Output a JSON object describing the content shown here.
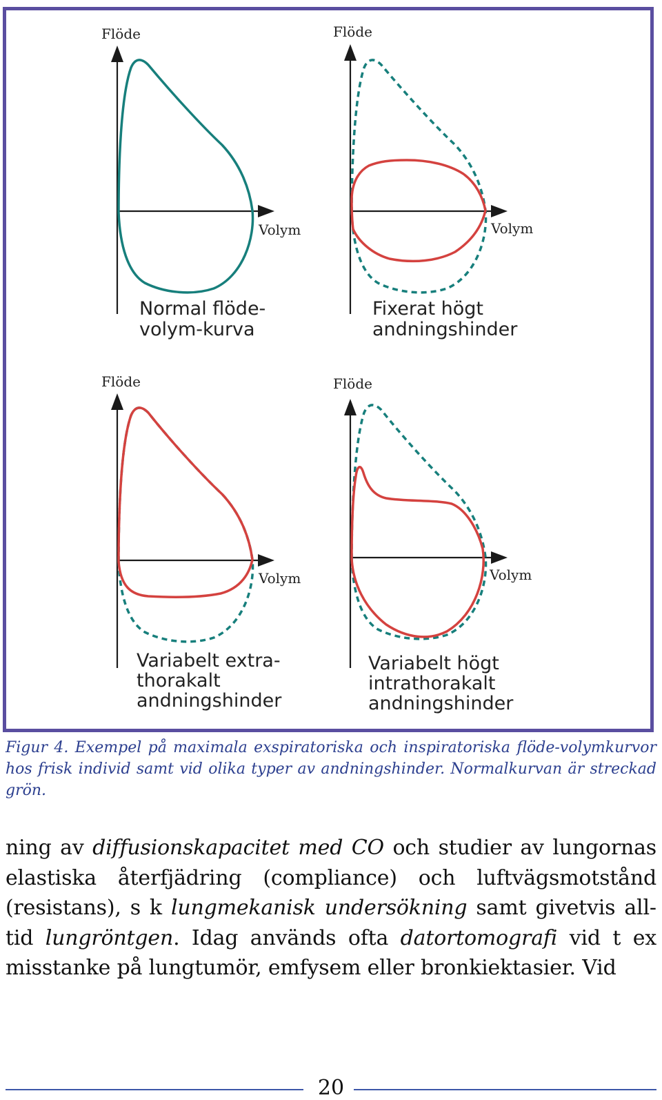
{
  "figure": {
    "panels": [
      {
        "y_label": "Flöde",
        "x_label": "Volym",
        "title_lines": [
          "Normal flöde-",
          "volym-kurva"
        ]
      },
      {
        "y_label": "Flöde",
        "x_label": "Volym",
        "title_lines": [
          "Fixerat högt",
          "andningshinder"
        ]
      },
      {
        "y_label": "Flöde",
        "x_label": "Volym",
        "title_lines": [
          "Variabelt extra-",
          "thorakalt",
          "andningshinder"
        ]
      },
      {
        "y_label": "Flöde",
        "x_label": "Volym",
        "title_lines": [
          "Variabelt högt",
          "intrathorakalt",
          "andningshinder"
        ]
      }
    ],
    "colors": {
      "frame": "#5a4ea0",
      "normal_curve": "#177f7c",
      "obstructed_curve": "#d4423f",
      "axis": "#1a1a1a"
    }
  },
  "caption": "Figur 4. Exempel på maximala exspiratoriska och inspiratoriska flöde-volym­kurvor hos frisk individ samt vid olika typer av andningshinder. Normalkurvan är streckad grön.",
  "body": {
    "s1": "ning av ",
    "e1": "diffusionskapacitet med CO",
    "s2": " och studier av lungornas elastiska återfjädring (compliance) och luftvägsmotstånd (resistans), s k ",
    "e2": "lungmekanisk undersökning",
    "s3": " samt givetvis all­tid ",
    "e3": "lungröntgen",
    "s4": ". Idag används ofta ",
    "e4": "datortomografi",
    "s5": " vid t ex misstanke på lungtumör, emfysem eller bronkiektasier. Vid"
  },
  "page_number": "20"
}
